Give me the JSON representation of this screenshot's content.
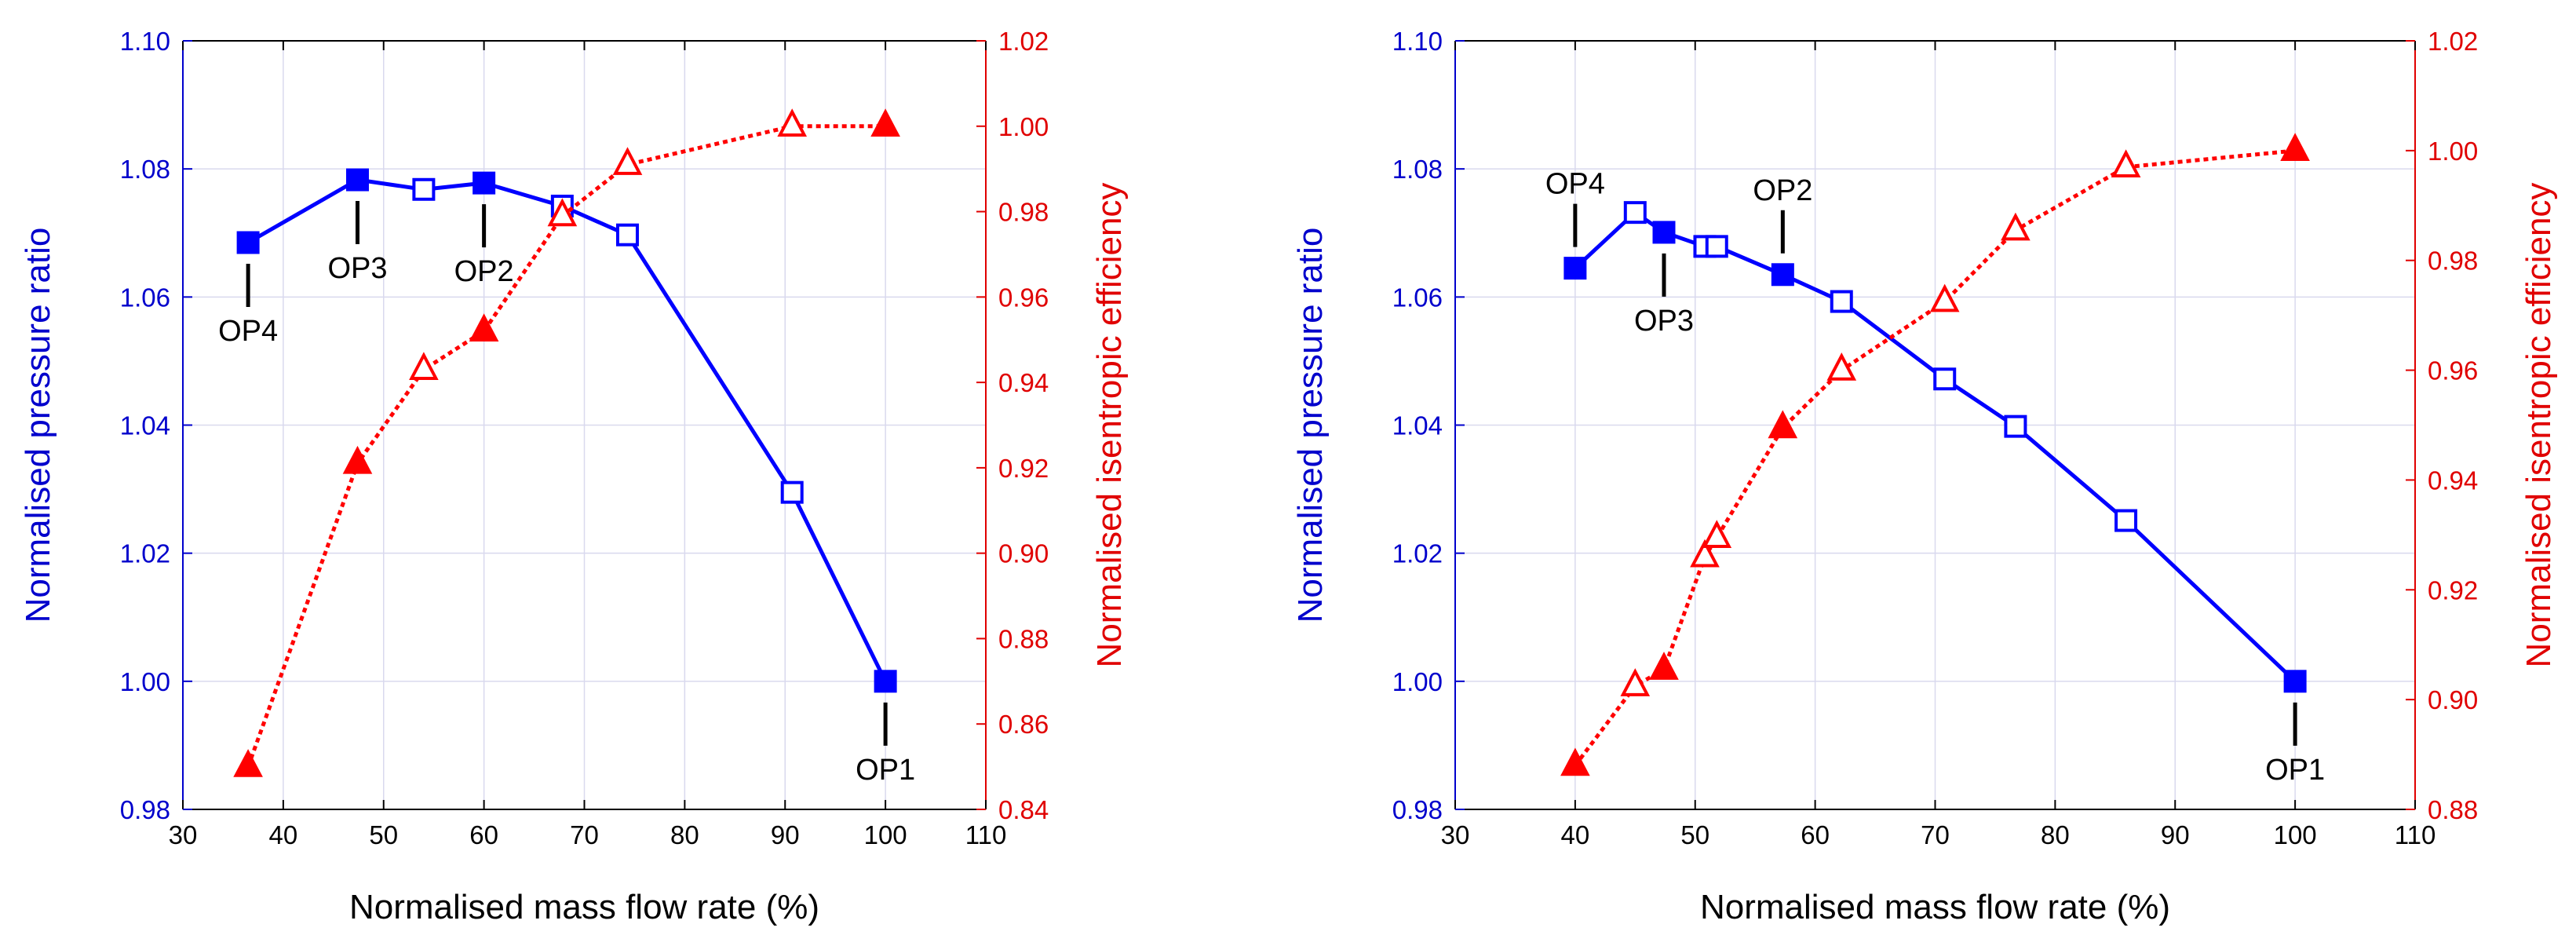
{
  "colors": {
    "left_axis": "#0000cc",
    "right_axis": "#e00000",
    "grid": "#d9d9ee",
    "frame": "#000000",
    "pressure_series": "#0000ff",
    "efficiency_series": "#ff0000"
  },
  "chart_data": [
    {
      "type": "line",
      "xlabel": "Normalised mass flow rate (%)",
      "ylabel_left": "Normalised pressure ratio",
      "ylabel_right": "Normalised isentropic efficiency",
      "xlim": [
        30,
        110
      ],
      "xticks": [
        30,
        40,
        50,
        60,
        70,
        80,
        90,
        100,
        110
      ],
      "ylim_left": [
        0.98,
        1.1
      ],
      "yticks_left": [
        0.98,
        1.0,
        1.02,
        1.04,
        1.06,
        1.08,
        1.1
      ],
      "ylim_right": [
        0.84,
        1.02
      ],
      "yticks_right": [
        0.84,
        0.86,
        0.88,
        0.9,
        0.92,
        0.94,
        0.96,
        0.98,
        1.0,
        1.02
      ],
      "grid": true,
      "series": [
        {
          "name": "Normalised pressure ratio",
          "axis": "left",
          "marker": "square",
          "line_style": "solid",
          "x": [
            36.5,
            47.4,
            54,
            60,
            67.8,
            74.3,
            90.7,
            100
          ],
          "y": [
            1.0685,
            1.0783,
            1.0768,
            1.0778,
            1.0742,
            1.0697,
            1.0295,
            1.0
          ],
          "filled": [
            true,
            true,
            false,
            true,
            false,
            false,
            false,
            true
          ]
        },
        {
          "name": "Normalised isentropic efficiency",
          "axis": "right",
          "marker": "triangle",
          "line_style": "dotted",
          "x": [
            36.5,
            47.4,
            54,
            60,
            67.8,
            74.3,
            90.7,
            100
          ],
          "y": [
            0.85,
            0.921,
            0.943,
            0.952,
            0.979,
            0.991,
            1.0,
            1.0
          ],
          "filled": [
            true,
            true,
            false,
            true,
            false,
            false,
            false,
            true
          ]
        }
      ],
      "annotations": [
        {
          "text": "OP4",
          "x": 36.5,
          "y": 1.0685,
          "position": "below"
        },
        {
          "text": "OP3",
          "x": 47.4,
          "y": 1.0783,
          "position": "below"
        },
        {
          "text": "OP2",
          "x": 60,
          "y": 1.0778,
          "position": "below"
        },
        {
          "text": "OP1",
          "x": 100,
          "y": 1.0,
          "position": "below"
        }
      ]
    },
    {
      "type": "line",
      "xlabel": "Normalised mass flow rate (%)",
      "ylabel_left": "Normalised pressure ratio",
      "ylabel_right": "Normalised isentropic efficiency",
      "xlim": [
        30,
        110
      ],
      "xticks": [
        30,
        40,
        50,
        60,
        70,
        80,
        90,
        100,
        110
      ],
      "ylim_left": [
        0.98,
        1.1
      ],
      "yticks_left": [
        0.98,
        1.0,
        1.02,
        1.04,
        1.06,
        1.08,
        1.1
      ],
      "ylim_right": [
        0.88,
        1.02
      ],
      "yticks_right": [
        0.88,
        0.9,
        0.92,
        0.94,
        0.96,
        0.98,
        1.0,
        1.02
      ],
      "grid": true,
      "series": [
        {
          "name": "Normalised pressure ratio",
          "axis": "left",
          "marker": "square",
          "line_style": "solid",
          "x": [
            40,
            45,
            47.4,
            50.8,
            51.8,
            57.3,
            62.2,
            70.8,
            76.7,
            85.9,
            100
          ],
          "y": [
            1.0645,
            1.0732,
            1.0701,
            1.0679,
            1.0679,
            1.0635,
            1.0593,
            1.0472,
            1.0398,
            1.0251,
            1.0
          ],
          "filled": [
            true,
            false,
            true,
            false,
            false,
            true,
            false,
            false,
            false,
            false,
            true
          ]
        },
        {
          "name": "Normalised isentropic efficiency",
          "axis": "right",
          "marker": "triangle",
          "line_style": "dotted",
          "x": [
            40,
            45,
            47.4,
            50.8,
            51.8,
            57.3,
            62.2,
            70.8,
            76.7,
            85.9,
            100
          ],
          "y": [
            0.888,
            0.9025,
            0.9055,
            0.926,
            0.9295,
            0.9495,
            0.96,
            0.9725,
            0.9855,
            0.997,
            1.0
          ],
          "filled": [
            true,
            false,
            true,
            false,
            false,
            true,
            false,
            false,
            false,
            false,
            true
          ]
        }
      ],
      "annotations": [
        {
          "text": "OP4",
          "x": 40,
          "y": 1.0645,
          "position": "above"
        },
        {
          "text": "OP3",
          "x": 47.4,
          "y": 1.0701,
          "position": "below"
        },
        {
          "text": "OP2",
          "x": 57.3,
          "y": 1.0635,
          "position": "above"
        },
        {
          "text": "OP1",
          "x": 100,
          "y": 1.0,
          "position": "below"
        }
      ]
    }
  ]
}
